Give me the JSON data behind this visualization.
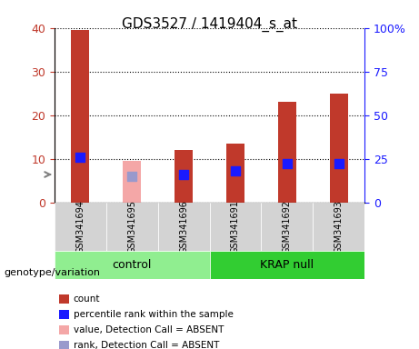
{
  "title": "GDS3527 / 1419404_s_at",
  "samples": [
    "GSM341694",
    "GSM341695",
    "GSM341696",
    "GSM341691",
    "GSM341692",
    "GSM341693"
  ],
  "groups": [
    "control",
    "control",
    "control",
    "KRAP null",
    "KRAP null",
    "KRAP null"
  ],
  "count_values": [
    39.5,
    null,
    12,
    13.5,
    23,
    25
  ],
  "count_absent_values": [
    null,
    9.5,
    null,
    null,
    null,
    null
  ],
  "percentile_values": [
    26,
    null,
    16,
    18,
    22,
    22.5
  ],
  "percentile_absent_values": [
    null,
    15,
    null,
    null,
    null,
    null
  ],
  "bar_color_red": "#c0392b",
  "bar_color_pink": "#f4a7a7",
  "dot_color_blue": "#1a1aff",
  "dot_color_lightblue": "#9999cc",
  "left_axis_color": "#c0392b",
  "right_axis_color": "#1a1aff",
  "ylim_left": [
    0,
    40
  ],
  "ylim_right": [
    0,
    100
  ],
  "yticks_left": [
    0,
    10,
    20,
    30,
    40
  ],
  "yticks_right": [
    0,
    25,
    50,
    75,
    100
  ],
  "ytick_labels_right": [
    "0",
    "25",
    "50",
    "75",
    "100%"
  ],
  "grid_color": "#000000",
  "bg_plot": "#ffffff",
  "bg_sample": "#d3d3d3",
  "bg_control": "#90ee90",
  "bg_krap": "#32cd32",
  "label_control": "control",
  "label_krap": "KRAP null",
  "genotype_label": "genotype/variation",
  "legend_items": [
    {
      "color": "#c0392b",
      "label": "count"
    },
    {
      "color": "#1a1aff",
      "label": "percentile rank within the sample"
    },
    {
      "color": "#f4a7a7",
      "label": "value, Detection Call = ABSENT"
    },
    {
      "color": "#9999cc",
      "label": "rank, Detection Call = ABSENT"
    }
  ],
  "bar_width": 0.35,
  "dot_size": 60
}
